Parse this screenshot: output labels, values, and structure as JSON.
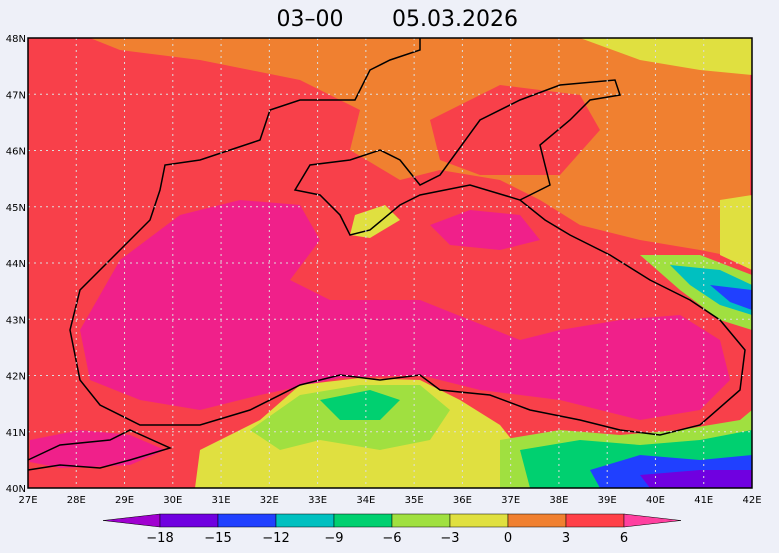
{
  "header": {
    "time": "03–00",
    "date": "05.03.2026"
  },
  "map": {
    "lon_labels": [
      "27E",
      "28E",
      "29E",
      "30E",
      "31E",
      "32E",
      "33E",
      "34E",
      "35E",
      "36E",
      "37E",
      "38E",
      "39E",
      "40E",
      "41E",
      "42E"
    ],
    "lat_labels": [
      "48N",
      "47N",
      "46N",
      "45N",
      "44N",
      "43N",
      "42N",
      "41N",
      "40N"
    ]
  },
  "legend": {
    "labels": [
      "−18",
      "−15",
      "−12",
      "−9",
      "−6",
      "−3",
      "0",
      "3",
      "6"
    ],
    "colors": [
      "#a000d0",
      "#7000e0",
      "#2040ff",
      "#00c0c0",
      "#00d070",
      "#a0e040",
      "#e0e040",
      "#f08030",
      "#ff4048",
      "#ff40a0"
    ]
  }
}
